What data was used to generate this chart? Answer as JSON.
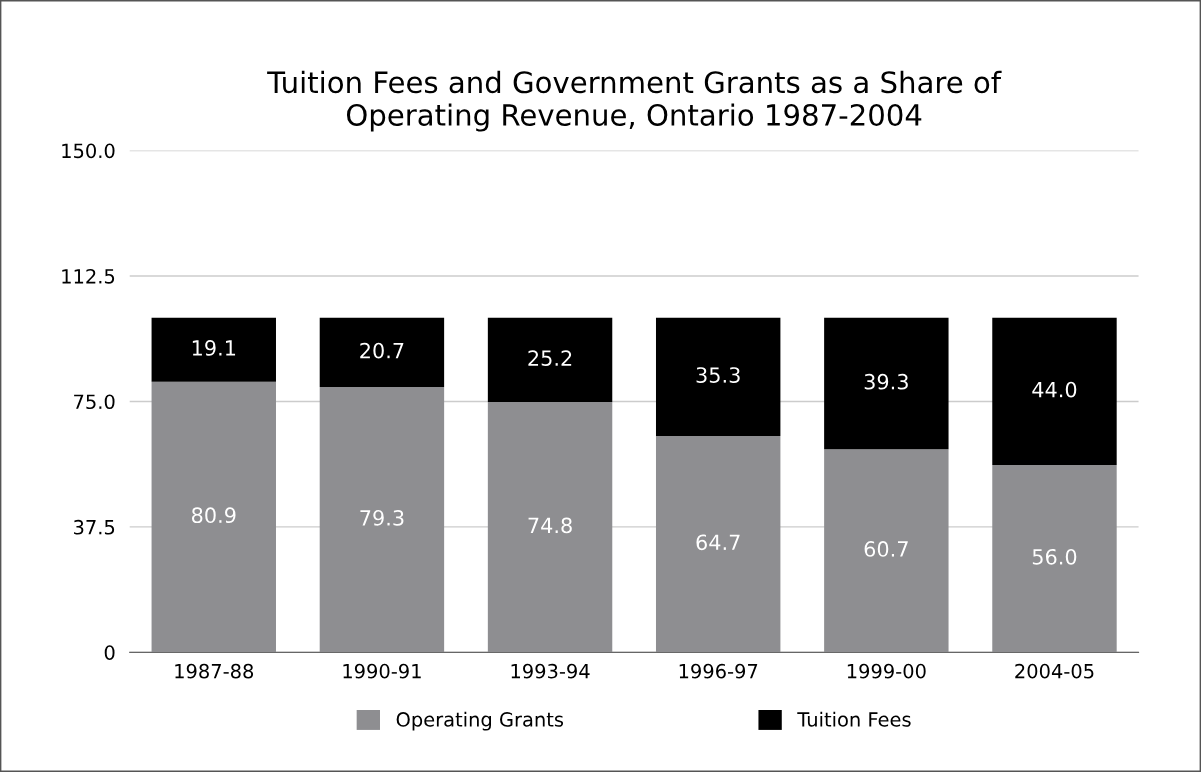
{
  "chart_data": {
    "type": "bar",
    "title": "Tuition Fees and Government Grants as a Share of\nOperating Revenue, Ontario 1987-2004",
    "categories": [
      "1987-88",
      "1990-91",
      "1993-94",
      "1996-97",
      "1999-00",
      "2004-05"
    ],
    "series": [
      {
        "name": "Operating Grants",
        "color": "#8e8e91",
        "values": [
          80.9,
          79.3,
          74.8,
          64.7,
          60.7,
          56.0
        ],
        "value_labels": [
          "80.9",
          "79.3",
          "74.8",
          "64.7",
          "60.7",
          "56.0"
        ]
      },
      {
        "name": "Tuition Fees",
        "color": "#000000",
        "values": [
          19.1,
          20.7,
          25.2,
          35.3,
          39.3,
          44.0
        ],
        "value_labels": [
          "19.1",
          "20.7",
          "25.2",
          "35.3",
          "39.3",
          "44.0"
        ]
      }
    ],
    "stacked": true,
    "ylim": [
      0,
      150
    ],
    "yticks": [
      0,
      37.5,
      {
        "value": 75,
        "label": "75.0"
      },
      112.5,
      {
        "value": 150,
        "label": "150.0"
      }
    ],
    "grid": "y",
    "legend": "bottom"
  }
}
